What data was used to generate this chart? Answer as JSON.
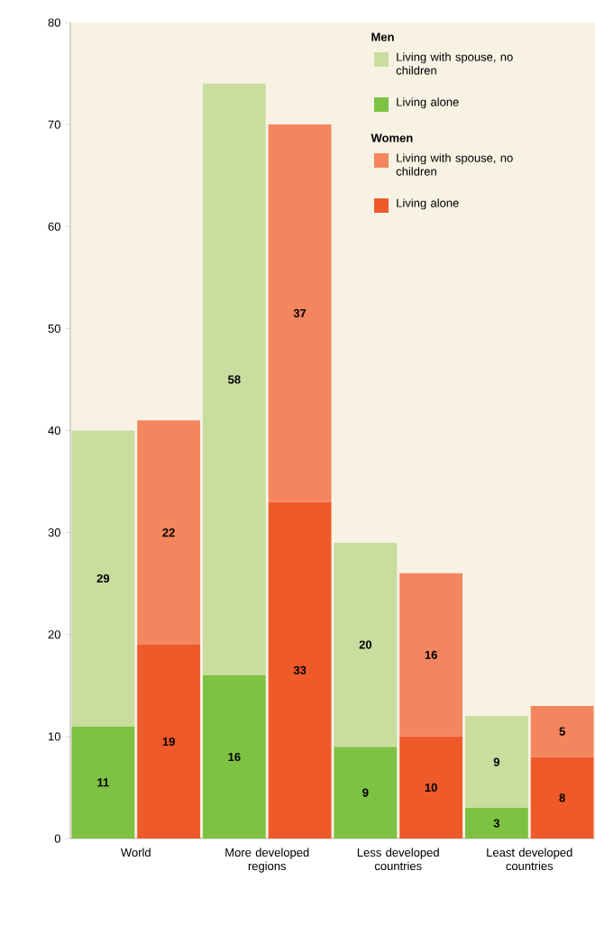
{
  "chart_data": {
    "type": "bar",
    "stacked": true,
    "categories": [
      "World",
      null,
      "More developed regions",
      null,
      "Less developed countries",
      null,
      "Least developed countries",
      null
    ],
    "annotations": [
      "Men",
      "Women"
    ],
    "series": [
      {
        "name": "Living alone",
        "color": "#7dc242",
        "values": [
          11,
          null,
          16,
          null,
          9,
          null,
          3,
          null
        ]
      },
      {
        "name": "Living with spouse, no children",
        "color": "#c8dd9e",
        "values": [
          29,
          null,
          58,
          null,
          20,
          null,
          9,
          null
        ]
      },
      {
        "name": "Living alone",
        "color": "#ef5a2a",
        "values": [
          null,
          19,
          null,
          33,
          null,
          10,
          null,
          8
        ]
      },
      {
        "name": "Living with spouse, no children",
        "color": "#f4865f",
        "values": [
          null,
          22,
          null,
          37,
          null,
          16,
          null,
          5
        ]
      }
    ],
    "ylim": [
      0,
      80
    ],
    "yticks": [
      0,
      10,
      20,
      30,
      40,
      50,
      60,
      70,
      80
    ],
    "data_labels": true,
    "legend": "top right",
    "grid": false
  }
}
